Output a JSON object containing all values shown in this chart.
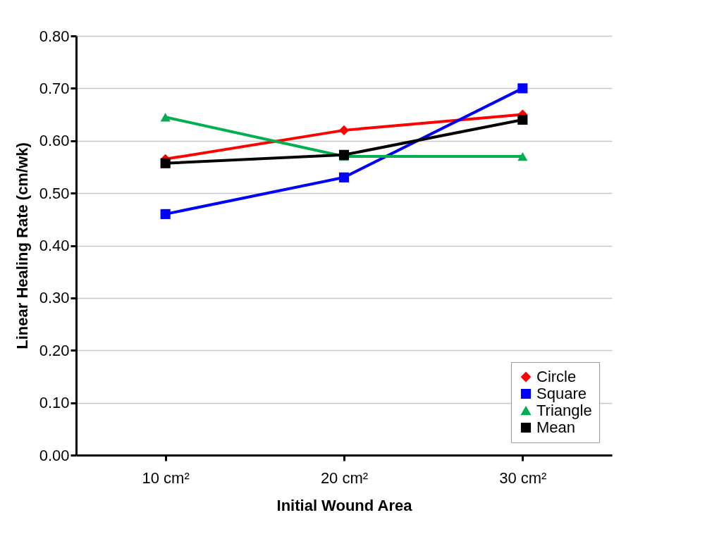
{
  "chart_data": {
    "type": "line",
    "xlabel": "Initial Wound Area",
    "ylabel": "Linear Healing Rate (cm/wk)",
    "categories": [
      "10 cm²",
      "20 cm²",
      "30 cm²"
    ],
    "series": [
      {
        "name": "Circle",
        "color": "#ff0000",
        "marker": "diamond",
        "values": [
          0.565,
          0.62,
          0.65
        ]
      },
      {
        "name": "Square",
        "color": "#0000ff",
        "marker": "square",
        "values": [
          0.46,
          0.53,
          0.7
        ]
      },
      {
        "name": "Triangle",
        "color": "#00b050",
        "marker": "triangle",
        "values": [
          0.645,
          0.57,
          0.57
        ]
      },
      {
        "name": "Mean",
        "color": "#000000",
        "marker": "square",
        "values": [
          0.557,
          0.573,
          0.64
        ]
      }
    ],
    "ylim": [
      0,
      0.8
    ],
    "yticks": [
      {
        "value": 0,
        "label": "0.00"
      },
      {
        "value": 0.1,
        "label": "0.10"
      },
      {
        "value": 0.2,
        "label": "0.20"
      },
      {
        "value": 0.3,
        "label": "0.30"
      },
      {
        "value": 0.4,
        "label": "0.40"
      },
      {
        "value": 0.5,
        "label": "0.50"
      },
      {
        "value": 0.6,
        "label": "0.60"
      },
      {
        "value": 0.7,
        "label": "0.70"
      },
      {
        "value": 0.8,
        "label": "0.80"
      }
    ],
    "grid": "y",
    "legend": "bottom right",
    "line_style": "solid"
  }
}
